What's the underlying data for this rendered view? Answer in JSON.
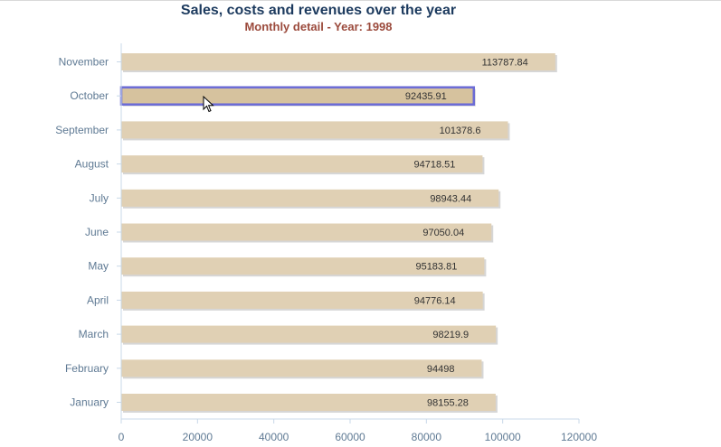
{
  "chart_data": {
    "type": "bar",
    "orientation": "horizontal",
    "title": "Sales, costs and revenues over the year",
    "subtitle": "Monthly detail - Year: 1998",
    "categories": [
      "November",
      "October",
      "September",
      "August",
      "July",
      "June",
      "May",
      "April",
      "March",
      "February",
      "January"
    ],
    "values": [
      113787.84,
      92435.91,
      101378.6,
      94718.51,
      98943.44,
      97050.04,
      95183.81,
      94776.14,
      98219.9,
      94498,
      98155.28
    ],
    "value_labels": [
      "113787.84",
      "92435.91",
      "101378.6",
      "94718.51",
      "98943.44",
      "97050.04",
      "95183.81",
      "94776.14",
      "98219.9",
      "94498",
      "98155.28"
    ],
    "xlim": [
      0,
      120000
    ],
    "x_ticks": [
      0,
      20000,
      40000,
      60000,
      80000,
      100000,
      120000
    ],
    "x_tick_labels": [
      "0",
      "20000",
      "40000",
      "60000",
      "80000",
      "100000",
      "120000"
    ],
    "grid": false,
    "legend": "none",
    "highlighted_category": "October",
    "colors": {
      "bar": "#e0d0b4",
      "bar_shadow": "#d6d6d6",
      "bar_highlight": "#d6c29e",
      "highlight_border": "#6b6bd6",
      "axis": "#c8d8e8"
    }
  }
}
